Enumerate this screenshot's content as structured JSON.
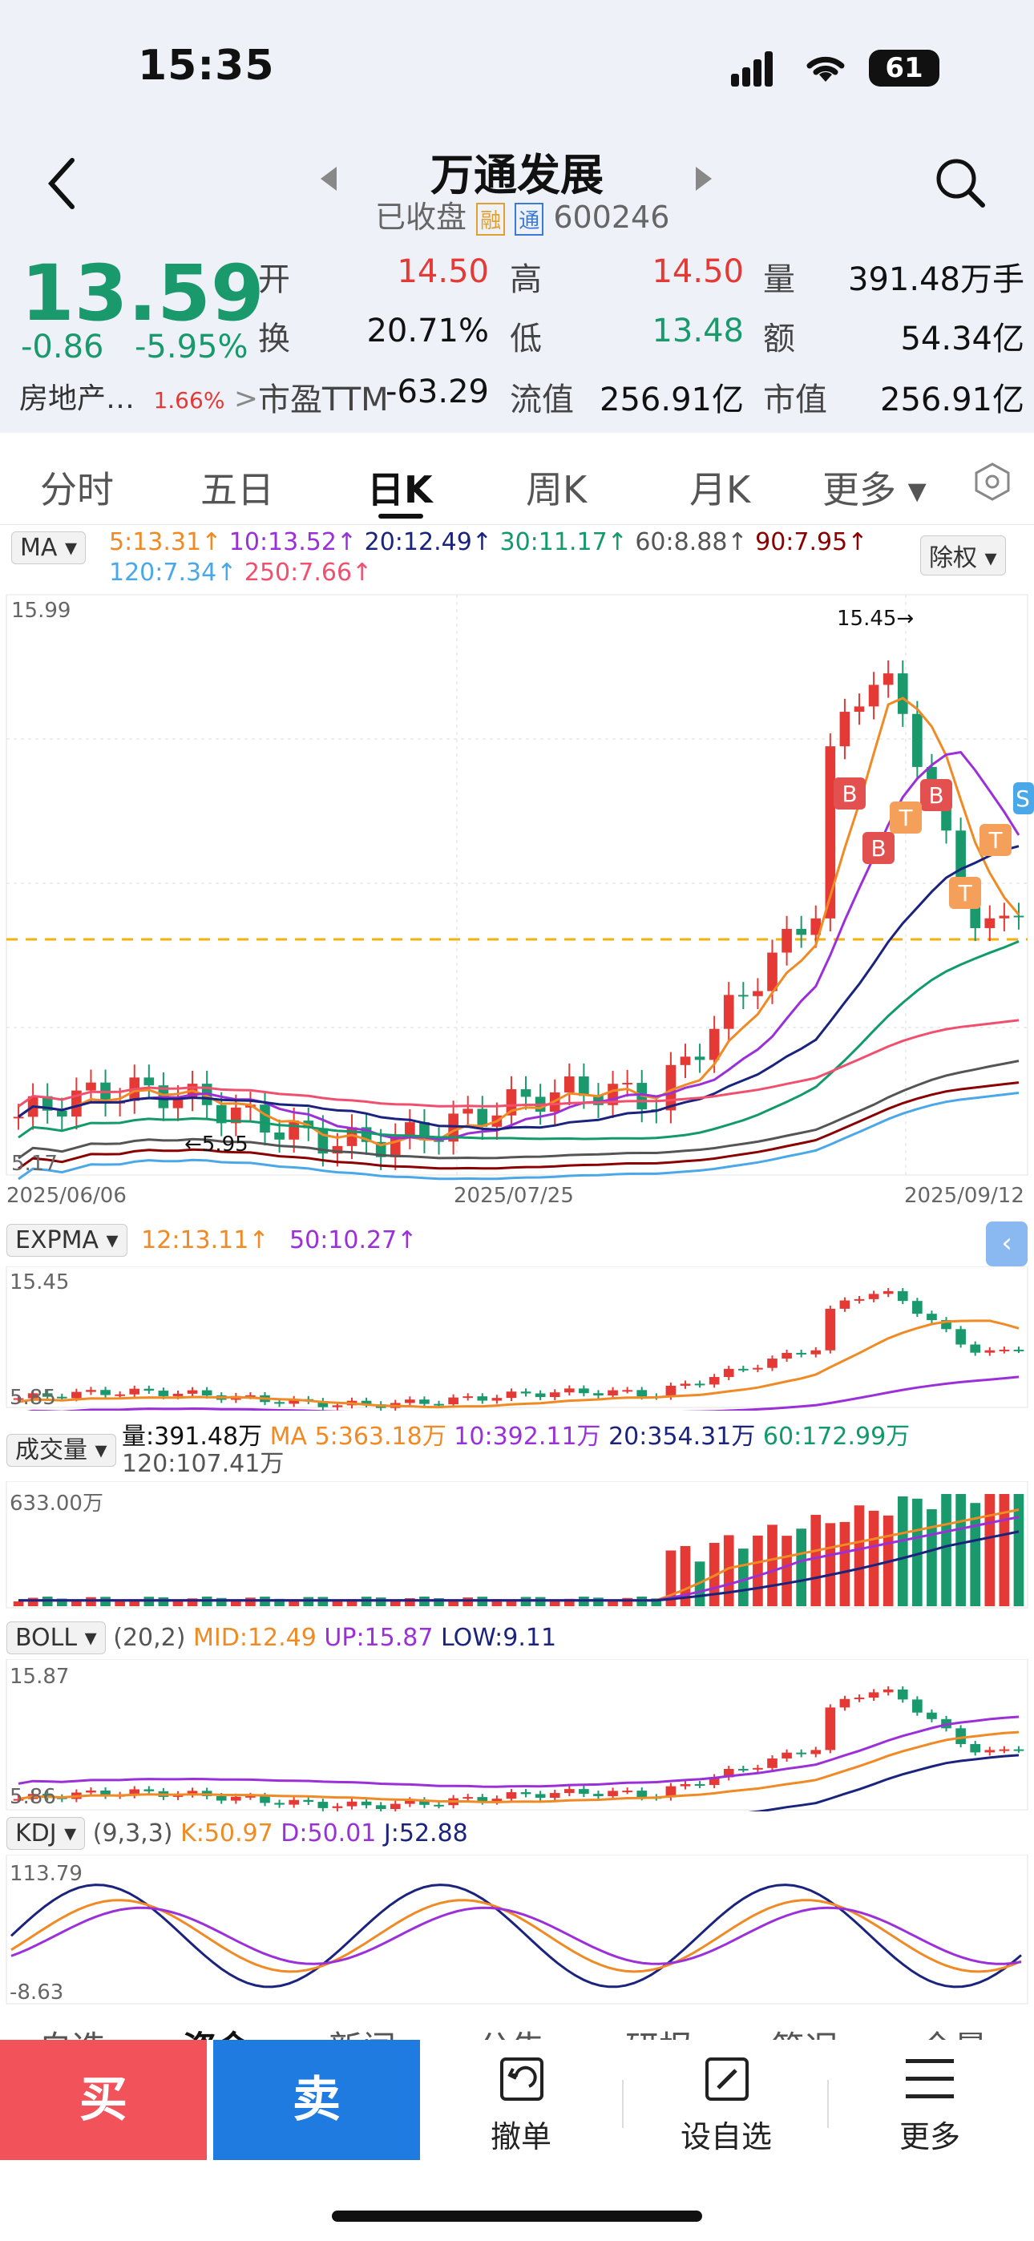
{
  "status_bar": {
    "time": "15:35",
    "battery": "61"
  },
  "header": {
    "title": "万通发展",
    "status": "已收盘",
    "badge_rong": "融",
    "badge_tong": "通",
    "code": "600246"
  },
  "quote": {
    "price": "13.59",
    "change": "-0.86",
    "change_pct": "-5.95%",
    "sector": "房地产…",
    "sector_pct": "1.66%",
    "open_label": "开",
    "open": "14.50",
    "high_label": "高",
    "high": "14.50",
    "volume_label": "量",
    "volume": "391.48万手",
    "turnover_label": "换",
    "turnover": "20.71%",
    "low_label": "低",
    "low": "13.48",
    "amount_label": "额",
    "amount": "54.34亿",
    "pe_label": "市盈TTM",
    "pe": "-63.29",
    "float_label": "流值",
    "float_value": "256.91亿",
    "cap_label": "市值",
    "cap": "256.91亿",
    "colors": {
      "up": "#e53935",
      "down": "#1a9a6c"
    }
  },
  "tabs": [
    "分时",
    "五日",
    "日K",
    "周K",
    "月K",
    "更多 ▾"
  ],
  "ma_legend": {
    "label": "MA ▾",
    "items": [
      {
        "text": "5:13.31↑",
        "color": "#f08a24"
      },
      {
        "text": "10:13.52↑",
        "color": "#9b30d9"
      },
      {
        "text": "20:12.49↑",
        "color": "#1a237e"
      },
      {
        "text": "30:11.17↑",
        "color": "#139a6b"
      },
      {
        "text": "60:8.88↑",
        "color": "#555555"
      },
      {
        "text": "90:7.95↑",
        "color": "#8b0000"
      },
      {
        "text": "120:7.34↑",
        "color": "#4aa8e8"
      },
      {
        "text": "250:7.66↑",
        "color": "#f0506e"
      }
    ],
    "adjust": "除权 ▾"
  },
  "main_chart": {
    "y_top": "15.99",
    "y_bottom": "5.17",
    "max_label": "15.45→",
    "min_label": "←5.95",
    "dates": [
      "2025/06/06",
      "2025/07/25",
      "2025/09/12"
    ]
  },
  "expma": {
    "label": "EXPMA ▾",
    "v1": "12:13.11↑",
    "v2": "50:10.27↑",
    "y_top": "15.45",
    "y_bottom": "5.85"
  },
  "volume": {
    "label": "成交量 ▾",
    "v0": "量:391.48万",
    "v1": "MA 5:363.18万",
    "v2": "10:392.11万",
    "v3": "20:354.31万",
    "v4": "60:172.99万",
    "v5": "120:107.41万",
    "y_top": "633.00万"
  },
  "boll": {
    "label": "BOLL ▾",
    "params": "(20,2)",
    "mid": "MID:12.49",
    "up": "UP:15.87",
    "low": "LOW:9.11",
    "y_top": "15.87",
    "y_bottom": "5.86"
  },
  "kdj": {
    "label": "KDJ ▾",
    "params": "(9,3,3)",
    "k": "K:50.97",
    "d": "D:50.01",
    "j": "J:52.88",
    "y_top": "113.79",
    "y_bottom": "-8.63"
  },
  "sub_tabs": [
    "自选",
    "资金",
    "新闻",
    "公告",
    "研报",
    "简况",
    "全景"
  ],
  "bottom_bar": {
    "buy": "买",
    "sell": "卖",
    "cancel": "撤单",
    "add_watch": "设自选",
    "more": "更多"
  }
}
